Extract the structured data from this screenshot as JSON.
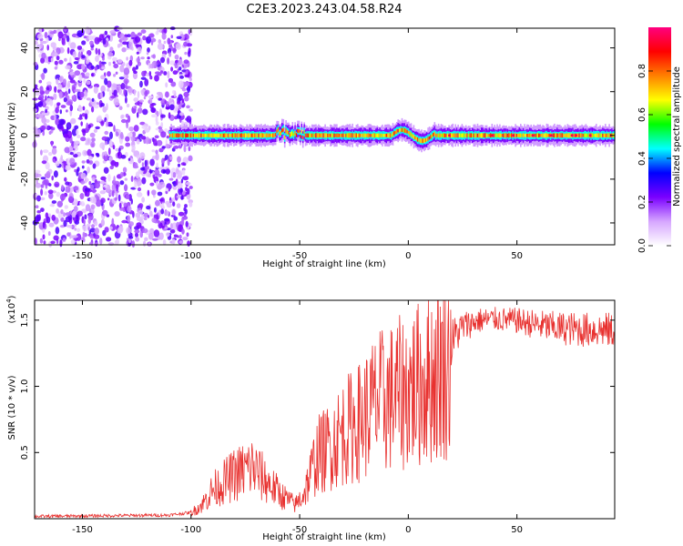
{
  "title": "C2E3.2023.243.04.58.R24",
  "chart_data": [
    {
      "type": "heatmap",
      "xlabel": "Height of straight line (km)",
      "ylabel": "Frequency (Hz)",
      "xlim": [
        -172,
        95
      ],
      "ylim": [
        -50,
        49
      ],
      "x_ticks": [
        -150,
        -100,
        -50,
        0,
        50
      ],
      "x_tick_labels": [
        "-150",
        "-100",
        "-50",
        "0",
        "50"
      ],
      "y_ticks": [
        -40,
        -20,
        0,
        20,
        40
      ],
      "y_tick_labels": [
        "-40",
        "-20",
        "0",
        "20",
        "40"
      ],
      "noise_region_x": [
        -172,
        -100
      ],
      "signal_band_center_hz": 0,
      "signal_band_halfwidth_hz": 3,
      "colorbar": {
        "label": "Normalized spectral amplitude",
        "range": [
          0,
          1
        ],
        "ticks": [
          0.0,
          0.2,
          0.4,
          0.6,
          0.8
        ],
        "tick_labels": [
          "0.0",
          "0.2",
          "0.4",
          "0.6",
          "0.8"
        ],
        "colormap": [
          "#ffffff",
          "#d6a6ff",
          "#7a00ff",
          "#0000ff",
          "#00ffff",
          "#00ff00",
          "#ffff00",
          "#ff8000",
          "#ff0000",
          "#ff0080"
        ]
      },
      "grid": false
    },
    {
      "type": "line",
      "xlabel": "Height of straight line (km)",
      "ylabel": "SNR (10 * v/v)",
      "y_multiplier_label": "(x10",
      "y_multiplier_exp": "4",
      "y_multiplier_close": ")",
      "xlim": [
        -172,
        95
      ],
      "ylim": [
        0,
        1.65
      ],
      "x_ticks": [
        -150,
        -100,
        -50,
        0,
        50
      ],
      "x_tick_labels": [
        "-150",
        "-100",
        "-50",
        "0",
        "50"
      ],
      "y_ticks": [
        0.5,
        1.0,
        1.5
      ],
      "y_tick_labels": [
        "0.5",
        "1.0",
        "1.5"
      ],
      "line_color": "#e8312f",
      "grid": false,
      "envelope": {
        "x": [
          -172,
          -110,
          -100,
          -95,
          -90,
          -80,
          -72,
          -65,
          -58,
          -52,
          -48,
          -42,
          -38,
          -30,
          -22,
          -15,
          -8,
          0,
          8,
          15,
          25,
          32,
          40,
          50,
          60,
          70,
          80,
          90,
          95
        ],
        "y": [
          0.02,
          0.03,
          0.05,
          0.12,
          0.25,
          0.38,
          0.45,
          0.32,
          0.2,
          0.12,
          0.22,
          0.55,
          0.6,
          0.75,
          0.85,
          1.0,
          1.05,
          1.12,
          1.2,
          1.3,
          1.48,
          1.52,
          1.53,
          1.52,
          1.49,
          1.47,
          1.46,
          1.46,
          1.45
        ]
      }
    }
  ]
}
